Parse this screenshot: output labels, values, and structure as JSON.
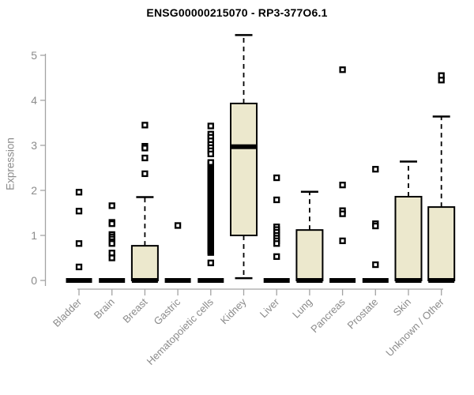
{
  "title": "ENSG00000215070 - RP3-377O6.1",
  "y_axis": {
    "label": "Expression"
  },
  "chart_data": {
    "type": "boxplot",
    "title": "ENSG00000215070 - RP3-377O6.1",
    "xlabel": "",
    "ylabel": "Expression",
    "ylim": [
      0,
      5.5
    ],
    "yticks": [
      0,
      1,
      2,
      3,
      4,
      5
    ],
    "grid": false,
    "legend": "none",
    "categories": [
      "Bladder",
      "Brain",
      "Breast",
      "Gastric",
      "Hematopoietic cells",
      "Kidney",
      "Liver",
      "Lung",
      "Pancreas",
      "Prostate",
      "Skin",
      "Unknown / Other"
    ],
    "series": [
      {
        "category": "Bladder",
        "min": 0,
        "q1": 0,
        "median": 0,
        "q3": 0,
        "max": 0,
        "outliers": [
          1.96,
          1.54,
          0.82,
          0.3
        ]
      },
      {
        "category": "Brain",
        "min": 0,
        "q1": 0,
        "median": 0,
        "q3": 0,
        "max": 0,
        "outliers": [
          1.66,
          1.29,
          1.26,
          1.02,
          0.97,
          0.92,
          0.86,
          0.82,
          0.61,
          0.5
        ]
      },
      {
        "category": "Breast",
        "min": 0,
        "q1": 0,
        "median": 0,
        "q3": 0.77,
        "max": 1.85,
        "outliers": [
          3.45,
          2.98,
          2.94,
          2.72,
          2.37
        ]
      },
      {
        "category": "Gastric",
        "min": 0,
        "q1": 0,
        "median": 0,
        "q3": 0,
        "max": 0,
        "outliers": [
          1.22
        ]
      },
      {
        "category": "Hematopoietic cells",
        "min": 0,
        "q1": 0,
        "median": 0,
        "q3": 0,
        "max": 0,
        "outliers": [
          3.43,
          3.25,
          3.18,
          3.1,
          3.02,
          2.95,
          2.88,
          2.81,
          0.39
        ],
        "outlier_run": {
          "from": 0.62,
          "to": 2.62,
          "count": 72
        }
      },
      {
        "category": "Kidney",
        "min": 0.05,
        "q1": 1.0,
        "median": 2.97,
        "q3": 3.93,
        "max": 5.45,
        "outliers": []
      },
      {
        "category": "Liver",
        "min": 0,
        "q1": 0,
        "median": 0,
        "q3": 0,
        "max": 0,
        "outliers": [
          2.28,
          1.79,
          1.19,
          1.13,
          1.07,
          1.0,
          0.94,
          0.88,
          0.82,
          0.53
        ]
      },
      {
        "category": "Lung",
        "min": 0,
        "q1": 0,
        "median": 0,
        "q3": 1.12,
        "max": 1.97,
        "outliers": []
      },
      {
        "category": "Pancreas",
        "min": 0,
        "q1": 0,
        "median": 0,
        "q3": 0,
        "max": 0,
        "outliers": [
          4.68,
          2.12,
          1.55,
          1.48,
          0.88
        ]
      },
      {
        "category": "Prostate",
        "min": 0,
        "q1": 0,
        "median": 0,
        "q3": 0,
        "max": 0,
        "outliers": [
          2.47,
          1.26,
          1.21,
          0.35
        ]
      },
      {
        "category": "Skin",
        "min": 0,
        "q1": 0,
        "median": 0,
        "q3": 1.86,
        "max": 2.64,
        "outliers": []
      },
      {
        "category": "Unknown / Other",
        "min": 0,
        "q1": 0,
        "median": 0,
        "q3": 1.63,
        "max": 3.64,
        "outliers": [
          4.55,
          4.45
        ]
      }
    ],
    "colors": {
      "box_fill": "#ECE8CD",
      "box_stroke": "#000000",
      "median": "#000000",
      "whisker": "#000000",
      "axis_line": "#a3a3a3",
      "tick_label": "#8b8b8b",
      "title": "#000000"
    }
  }
}
